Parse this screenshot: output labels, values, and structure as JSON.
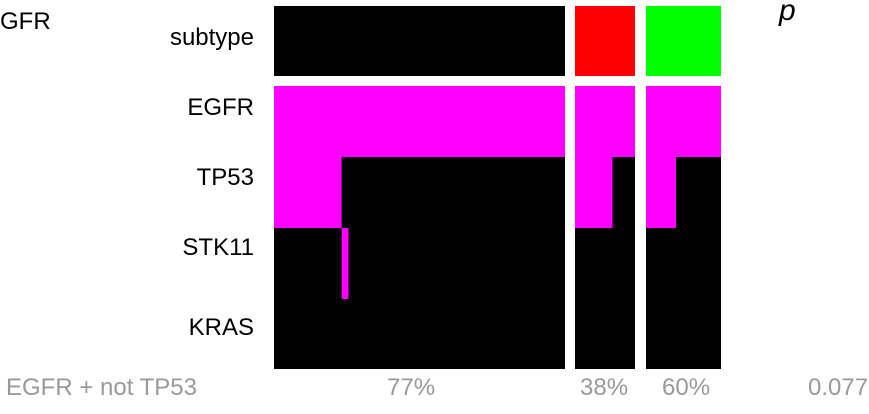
{
  "left_cut_label": "GFR",
  "corner_mark": "p",
  "footer": {
    "row_label": "EGFR + not TP53",
    "pct_1": "77%",
    "pct_2": "38%",
    "pct_3": "60%",
    "value": "0.077"
  },
  "colors": {
    "background": "#ffffff",
    "absent": "#000000",
    "mutated": "#ff00ff",
    "subtype_1": "#000000",
    "subtype_2": "#ff0000",
    "subtype_3": "#00ff00",
    "footer_text": "#9a9a9a"
  },
  "chart_data": {
    "type": "heatmap",
    "rows": [
      "subtype",
      "EGFR",
      "TP53",
      "STK11",
      "KRAS"
    ],
    "groups": [
      {
        "subtype_color": "#000000",
        "percent_label": "77%",
        "samples": 43,
        "rows": {
          "EGFR": [
            [
              0,
              43
            ]
          ],
          "TP53": [
            [
              0,
              10
            ]
          ],
          "STK11": [
            [
              10,
              11
            ]
          ],
          "KRAS": []
        }
      },
      {
        "subtype_color": "#ff0000",
        "percent_label": "38%",
        "samples": 8,
        "rows": {
          "EGFR": [
            [
              0,
              8
            ]
          ],
          "TP53": [
            [
              0,
              5
            ]
          ],
          "STK11": [],
          "KRAS": []
        }
      },
      {
        "subtype_color": "#00ff00",
        "percent_label": "60%",
        "samples": 10,
        "rows": {
          "EGFR": [
            [
              0,
              10
            ]
          ],
          "TP53": [
            [
              0,
              4
            ]
          ],
          "STK11": [],
          "KRAS": []
        }
      }
    ]
  }
}
